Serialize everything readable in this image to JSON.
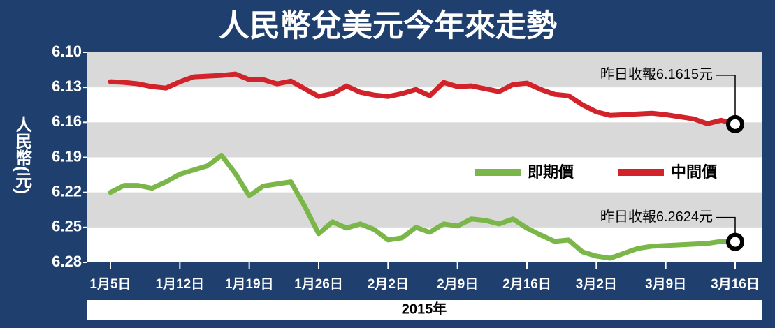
{
  "chart_data": {
    "type": "line",
    "title": "人民幣兌美元今年來走勢",
    "ylabel": "人民幣(元)",
    "xlabel": "2015年",
    "categories": [
      "1月5日",
      null,
      null,
      null,
      null,
      "1月12日",
      null,
      null,
      null,
      null,
      "1月19日",
      null,
      null,
      null,
      null,
      "1月26日",
      null,
      null,
      null,
      null,
      "2月2日",
      null,
      null,
      null,
      null,
      "2月9日",
      null,
      null,
      null,
      null,
      "2月16日",
      null,
      null,
      null,
      null,
      "3月2日",
      null,
      null,
      null,
      null,
      "3月9日",
      null,
      null,
      null,
      null,
      "3月16日"
    ],
    "series": [
      {
        "name": "即期價",
        "color": "#7ab648",
        "values": [
          6.22,
          6.214,
          6.214,
          6.2164,
          6.211,
          6.2044,
          6.2008,
          6.1972,
          6.1882,
          6.2038,
          6.223,
          6.2146,
          6.2128,
          6.211,
          6.232,
          6.2554,
          6.2452,
          6.2506,
          6.247,
          6.2518,
          6.2608,
          6.259,
          6.25,
          6.2542,
          6.247,
          6.2488,
          6.2428,
          6.244,
          6.247,
          6.2428,
          6.2506,
          6.2566,
          6.262,
          6.2608,
          6.271,
          6.2746,
          6.2764,
          6.2722,
          6.268,
          6.2662,
          6.2656,
          6.265,
          6.2644,
          6.2638,
          6.262,
          6.2624
        ]
      },
      {
        "name": "中間價",
        "color": "#d2232a",
        "values": [
          6.1252,
          6.1258,
          6.127,
          6.1294,
          6.1306,
          6.1252,
          6.121,
          6.1204,
          6.1198,
          6.1186,
          6.1234,
          6.1234,
          6.127,
          6.1246,
          6.1312,
          6.1378,
          6.1354,
          6.1288,
          6.1342,
          6.1366,
          6.1378,
          6.1354,
          6.1318,
          6.1372,
          6.1258,
          6.1294,
          6.1288,
          6.1312,
          6.1336,
          6.1276,
          6.1264,
          6.1318,
          6.136,
          6.1372,
          6.145,
          6.151,
          6.154,
          6.1534,
          6.1528,
          6.1522,
          6.1534,
          6.1552,
          6.157,
          6.1612,
          6.1582,
          6.1615
        ]
      }
    ],
    "annotations": [
      "昨日收報6.2624元",
      "昨日收報6.1615元"
    ],
    "ylim": [
      6.28,
      6.1
    ],
    "yticks": [
      {
        "value": 6.1,
        "label": "6.10"
      },
      6.13,
      6.16,
      6.19,
      6.22,
      6.25,
      6.28
    ],
    "bands": true
  }
}
